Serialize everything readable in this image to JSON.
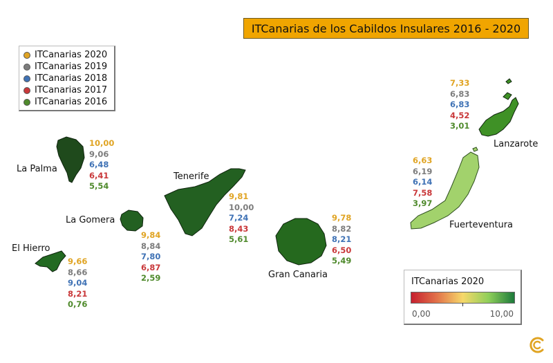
{
  "title": "ITCanarias de los Cabildos Insulares 2016 - 2020",
  "legend": [
    {
      "label": "ITCanarias 2020",
      "color": "#e0a423"
    },
    {
      "label": "ITCanarias 2019",
      "color": "#7d7d7d"
    },
    {
      "label": "ITCanarias 2018",
      "color": "#3f72b5"
    },
    {
      "label": "ITCanarias 2017",
      "color": "#c9383a"
    },
    {
      "label": "ITCanarias 2016",
      "color": "#4f8a2c"
    }
  ],
  "islands": [
    {
      "name": "La Palma",
      "values": [
        "10,00",
        "9,06",
        "6,48",
        "6,41",
        "5,54"
      ],
      "fill": "#1f4a1c"
    },
    {
      "name": "Tenerife",
      "values": [
        "9,81",
        "10,00",
        "7,24",
        "8,43",
        "5,61"
      ],
      "fill": "#236021"
    },
    {
      "name": "La Gomera",
      "values": [
        "9,84",
        "8,84",
        "7,80",
        "6,87",
        "2,59"
      ],
      "fill": "#236021"
    },
    {
      "name": "El Hierro",
      "values": [
        "9,66",
        "8,66",
        "9,04",
        "8,21",
        "0,76"
      ],
      "fill": "#236a22"
    },
    {
      "name": "Gran Canaria",
      "values": [
        "9,78",
        "8,82",
        "8,21",
        "6,50",
        "5,49"
      ],
      "fill": "#25691e"
    },
    {
      "name": "Fuerteventura",
      "values": [
        "6,63",
        "6,19",
        "6,14",
        "7,58",
        "3,97"
      ],
      "fill": "#a2d26c"
    },
    {
      "name": "Lanzarote",
      "values": [
        "7,33",
        "6,83",
        "6,83",
        "4,52",
        "3,01"
      ],
      "fill": "#3f9126"
    }
  ],
  "colorscale": {
    "title": "ITCanarias 2020",
    "min_label": "0,00",
    "max_label": "10,00",
    "colors": [
      "#c6202f",
      "#f6d86a",
      "#1c7a3b"
    ]
  }
}
